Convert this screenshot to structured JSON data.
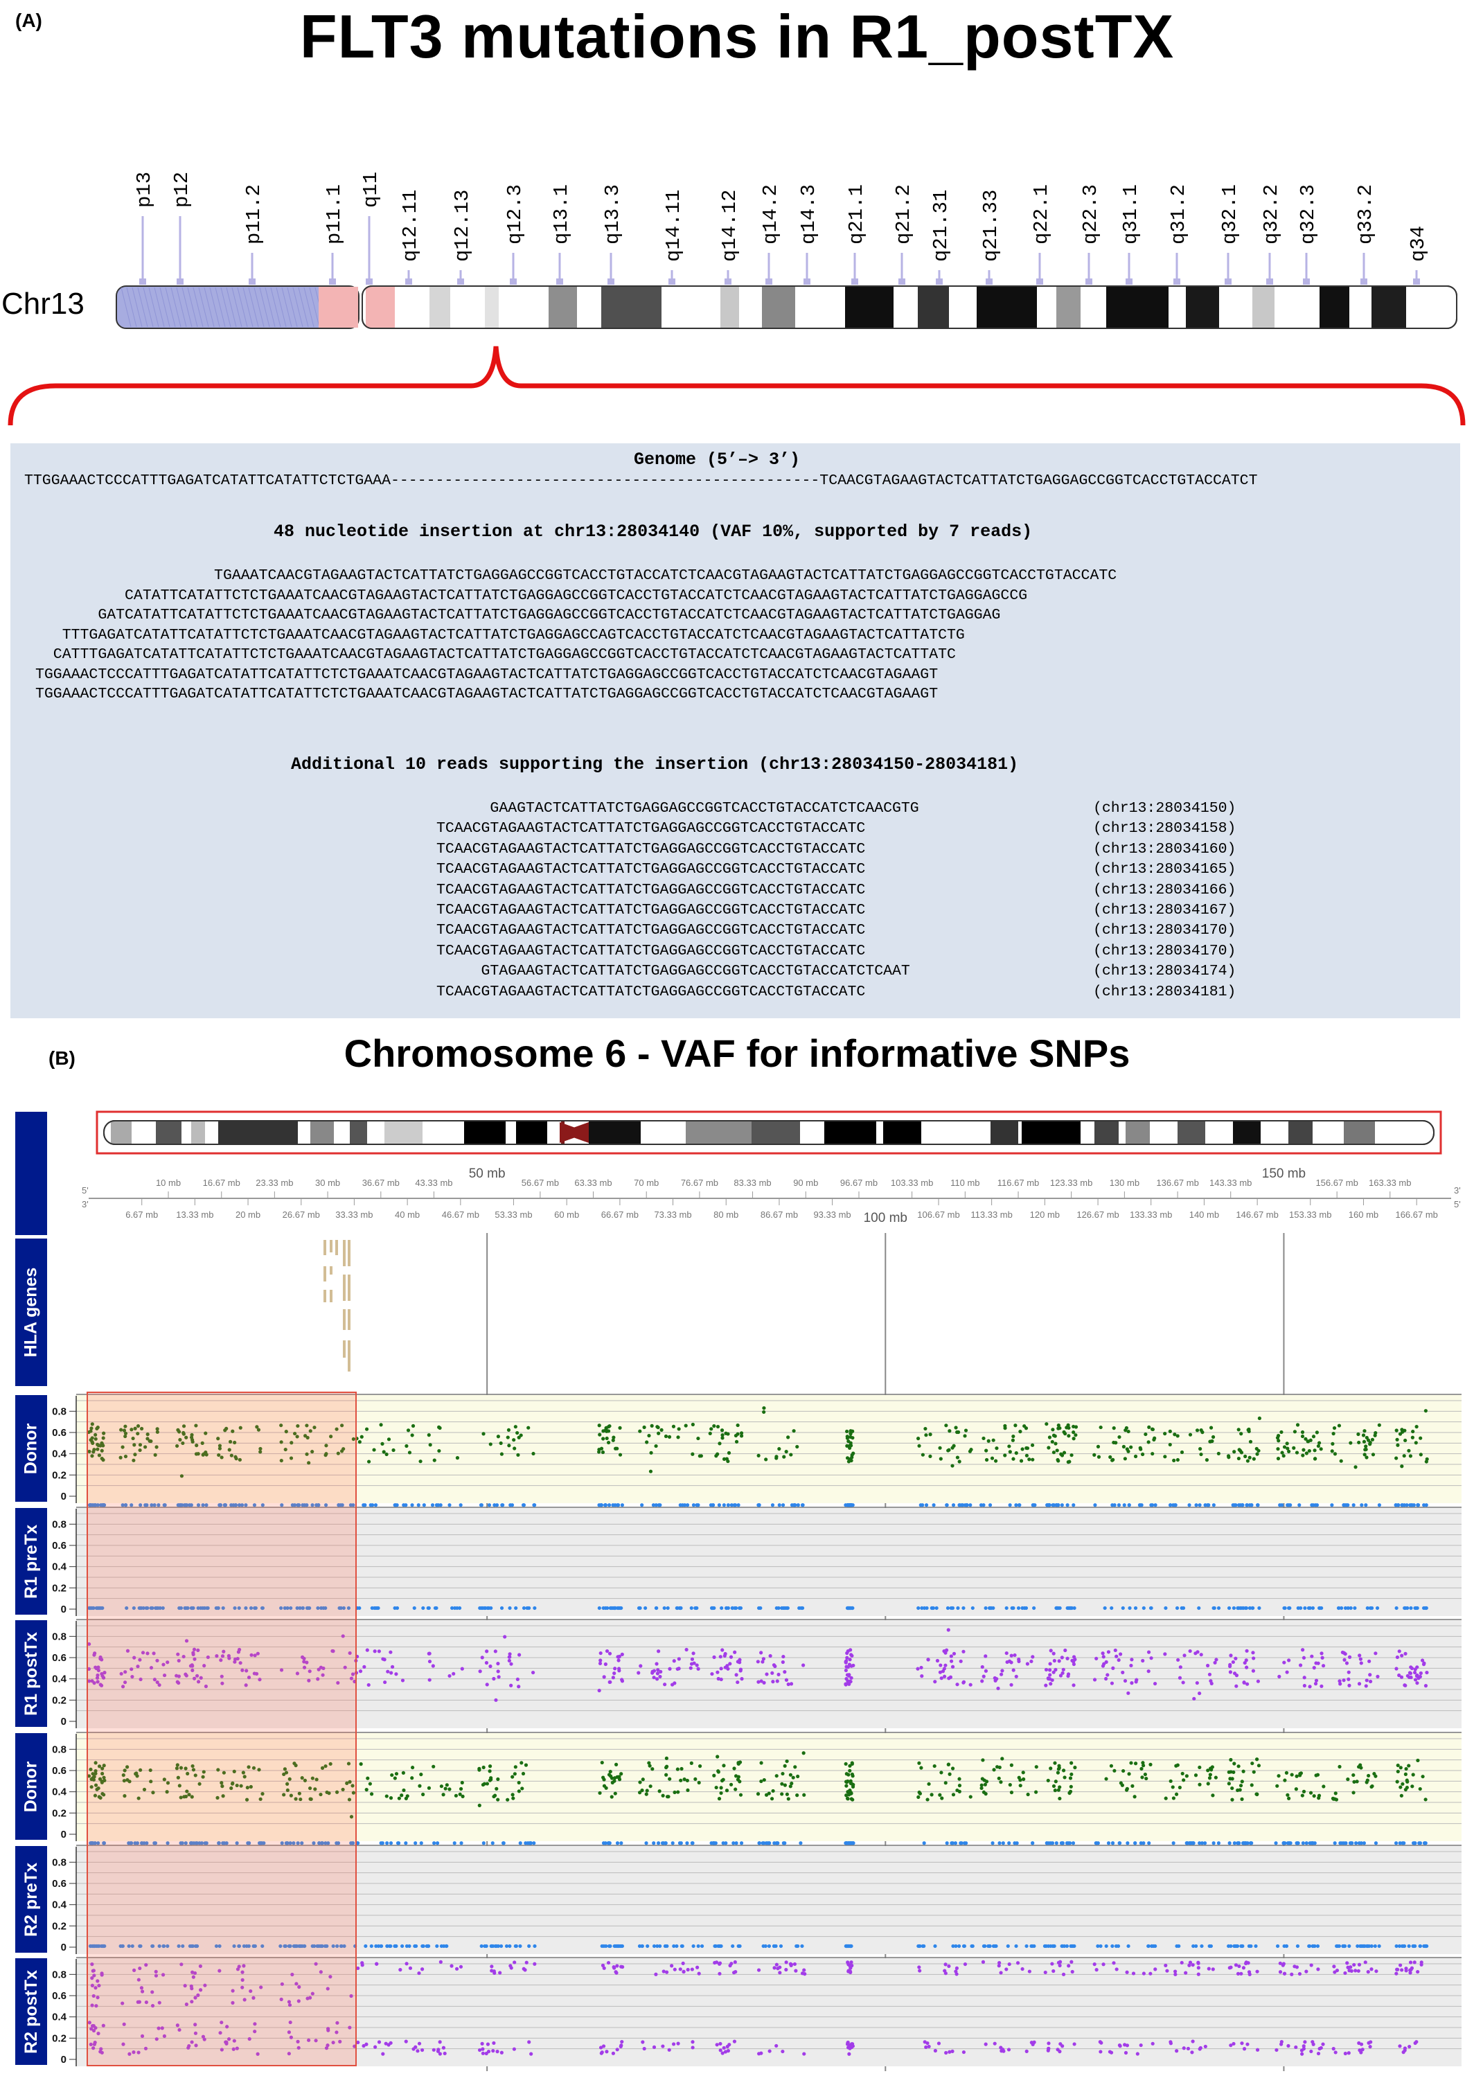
{
  "panel_a": {
    "letter": "(A)",
    "title": "FLT3 mutations in R1_postTX",
    "chrom_label": "Chr13",
    "bands": [
      "p13",
      "p12",
      "p11.2",
      "p11.1",
      "q11",
      "q12.11",
      "q12.13",
      "q12.3",
      "q13.1",
      "q13.3",
      "q14.11",
      "q14.12",
      "q14.2",
      "q14.3",
      "q21.1",
      "q21.2",
      "q21.31",
      "q21.33",
      "q22.1",
      "q22.3",
      "q31.1",
      "q31.2",
      "q32.1",
      "q32.2",
      "q32.3",
      "q33.2",
      "q34"
    ],
    "genome_header": "Genome (5’–> 3’)",
    "genome_seq": "TTGGAAACTCCCATTTGAGATCATATTCATATTCTCTGAAA------------------------------------------------TCAACGTAGAAGTACTCATTATCTGAGGAGCCGGTCACCTGTACCATCT",
    "insertion_header": "48 nucleotide insertion at chr13:28034140 (VAF 10%, supported by 7 reads)",
    "insertion_reads": [
      "                    TGAAATCAACGTAGAAGTACTCATTATCTGAGGAGCCGGTCACCTGTACCATCTCAACGTAGAAGTACTCATTATCTGAGGAGCCGGTCACCTGTACCATC",
      "          CATATTCATATTCTCTGAAATCAACGTAGAAGTACTCATTATCTGAGGAGCCGGTCACCTGTACCATCTCAACGTAGAAGTACTCATTATCTGAGGAGCCG",
      "       GATCATATTCATATTCTCTGAAATCAACGTAGAAGTACTCATTATCTGAGGAGCCGGTCACCTGTACCATCTCAACGTAGAAGTACTCATTATCTGAGGAG",
      "   TTTGAGATCATATTCATATTCTCTGAAATCAACGTAGAAGTACTCATTATCTGAGGAGCCAGTCACCTGTACCATCTCAACGTAGAAGTACTCATTATCTG",
      "  CATTTGAGATCATATTCATATTCTCTGAAATCAACGTAGAAGTACTCATTATCTGAGGAGCCGGTCACCTGTACCATCTCAACGTAGAAGTACTCATTATC",
      "TGGAAACTCCCATTTGAGATCATATTCATATTCTCTGAAATCAACGTAGAAGTACTCATTATCTGAGGAGCCGGTCACCTGTACCATCTCAACGTAGAAGT",
      "TGGAAACTCCCATTTGAGATCATATTCATATTCTCTGAAATCAACGTAGAAGTACTCATTATCTGAGGAGCCGGTCACCTGTACCATCTCAACGTAGAAGT"
    ],
    "additional_header": "Additional 10 reads supporting the insertion (chr13:28034150-28034181)",
    "additional_reads": [
      {
        "seq": "      GAAGTACTCATTATCTGAGGAGCCGGTCACCTGTACCATCTCAACGTG",
        "pos": "(chr13:28034150)"
      },
      {
        "seq": "TCAACGTAGAAGTACTCATTATCTGAGGAGCCGGTCACCTGTACCATC",
        "pos": "(chr13:28034158)"
      },
      {
        "seq": "TCAACGTAGAAGTACTCATTATCTGAGGAGCCGGTCACCTGTACCATC",
        "pos": "(chr13:28034160)"
      },
      {
        "seq": "TCAACGTAGAAGTACTCATTATCTGAGGAGCCGGTCACCTGTACCATC",
        "pos": "(chr13:28034165)"
      },
      {
        "seq": "TCAACGTAGAAGTACTCATTATCTGAGGAGCCGGTCACCTGTACCATC",
        "pos": "(chr13:28034166)"
      },
      {
        "seq": "TCAACGTAGAAGTACTCATTATCTGAGGAGCCGGTCACCTGTACCATC",
        "pos": "(chr13:28034167)"
      },
      {
        "seq": "TCAACGTAGAAGTACTCATTATCTGAGGAGCCGGTCACCTGTACCATC",
        "pos": "(chr13:28034170)"
      },
      {
        "seq": "TCAACGTAGAAGTACTCATTATCTGAGGAGCCGGTCACCTGTACCATC",
        "pos": "(chr13:28034170)"
      },
      {
        "seq": "     GTAGAAGTACTCATTATCTGAGGAGCCGGTCACCTGTACCATCTCAAT",
        "pos": "(chr13:28034174)"
      },
      {
        "seq": "TCAACGTAGAAGTACTCATTATCTGAGGAGCCGGTCACCTGTACCATC",
        "pos": "(chr13:28034181)"
      }
    ]
  },
  "panel_b": {
    "letter": "(B)",
    "title": "Chromosome 6 - VAF for informative SNPs",
    "strand_top": [
      "5'",
      "3'"
    ],
    "strand_bottom": [
      "3'",
      "5'"
    ],
    "major_ticks": [
      {
        "mb": 50,
        "label": "50 mb"
      },
      {
        "mb": 100,
        "label": "100 mb"
      },
      {
        "mb": 150,
        "label": "150 mb"
      }
    ],
    "top_ticks": [
      "10 mb",
      "16.67 mb",
      "23.33 mb",
      "30 mb",
      "36.67 mb",
      "43.33 mb",
      "56.67 mb",
      "63.33 mb",
      "70 mb",
      "76.67 mb",
      "83.33 mb",
      "90 mb",
      "96.67 mb",
      "103.33 mb",
      "110 mb",
      "116.67 mb",
      "123.33 mb",
      "130 mb",
      "136.67 mb",
      "143.33 mb",
      "156.67 mb",
      "163.33 mb"
    ],
    "bottom_ticks": [
      "6.67 mb",
      "13.33 mb",
      "20 mb",
      "26.67 mb",
      "33.33 mb",
      "40 mb",
      "46.67 mb",
      "53.33 mb",
      "60 mb",
      "66.67 mb",
      "73.33 mb",
      "80 mb",
      "86.67 mb",
      "93.33 mb",
      "106.67 mb",
      "113.33 mb",
      "120 mb",
      "126.67 mb",
      "133.33 mb",
      "140 mb",
      "146.67 mb",
      "153.33 mb",
      "160 mb",
      "166.67 mb"
    ],
    "hla_label": "HLA genes",
    "y_ticks": [
      "0.8",
      "0.6",
      "0.4",
      "0.2",
      "0"
    ],
    "colors": {
      "donor": "#1a6e12",
      "pre": "#2f86ea",
      "post": "#a23ce8",
      "header": "#001a8c"
    },
    "tracks": [
      {
        "label": "Donor",
        "kind": "donor"
      },
      {
        "label": "R1 preTx",
        "kind": "pre"
      },
      {
        "label": "R1 postTx",
        "kind": "post_het"
      },
      {
        "label": "Donor",
        "kind": "donor"
      },
      {
        "label": "R2 preTx",
        "kind": "pre"
      },
      {
        "label": "R2 postTx",
        "kind": "post_split"
      }
    ]
  }
}
